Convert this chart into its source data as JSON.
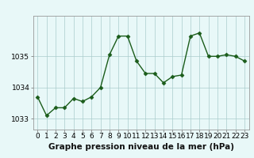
{
  "x": [
    0,
    1,
    2,
    3,
    4,
    5,
    6,
    7,
    8,
    9,
    10,
    11,
    12,
    13,
    14,
    15,
    16,
    17,
    18,
    19,
    20,
    21,
    22,
    23
  ],
  "y": [
    1033.7,
    1033.1,
    1033.35,
    1033.35,
    1033.65,
    1033.55,
    1033.7,
    1034.0,
    1035.05,
    1035.65,
    1035.65,
    1034.85,
    1034.45,
    1034.45,
    1034.15,
    1034.35,
    1034.4,
    1035.65,
    1035.75,
    1035.0,
    1035.0,
    1035.05,
    1035.0,
    1034.85
  ],
  "line_color": "#1a5c1a",
  "marker": "D",
  "marker_size": 2.5,
  "bg_color": "#e8f8f8",
  "grid_color": "#aacccc",
  "xlabel": "Graphe pression niveau de la mer (hPa)",
  "xlabel_fontsize": 7.5,
  "ylabel_ticks": [
    1033,
    1034,
    1035
  ],
  "xlim": [
    -0.5,
    23.5
  ],
  "ylim": [
    1032.65,
    1036.3
  ],
  "tick_fontsize": 6.5,
  "line_width": 1.0,
  "border_color": "#999999"
}
